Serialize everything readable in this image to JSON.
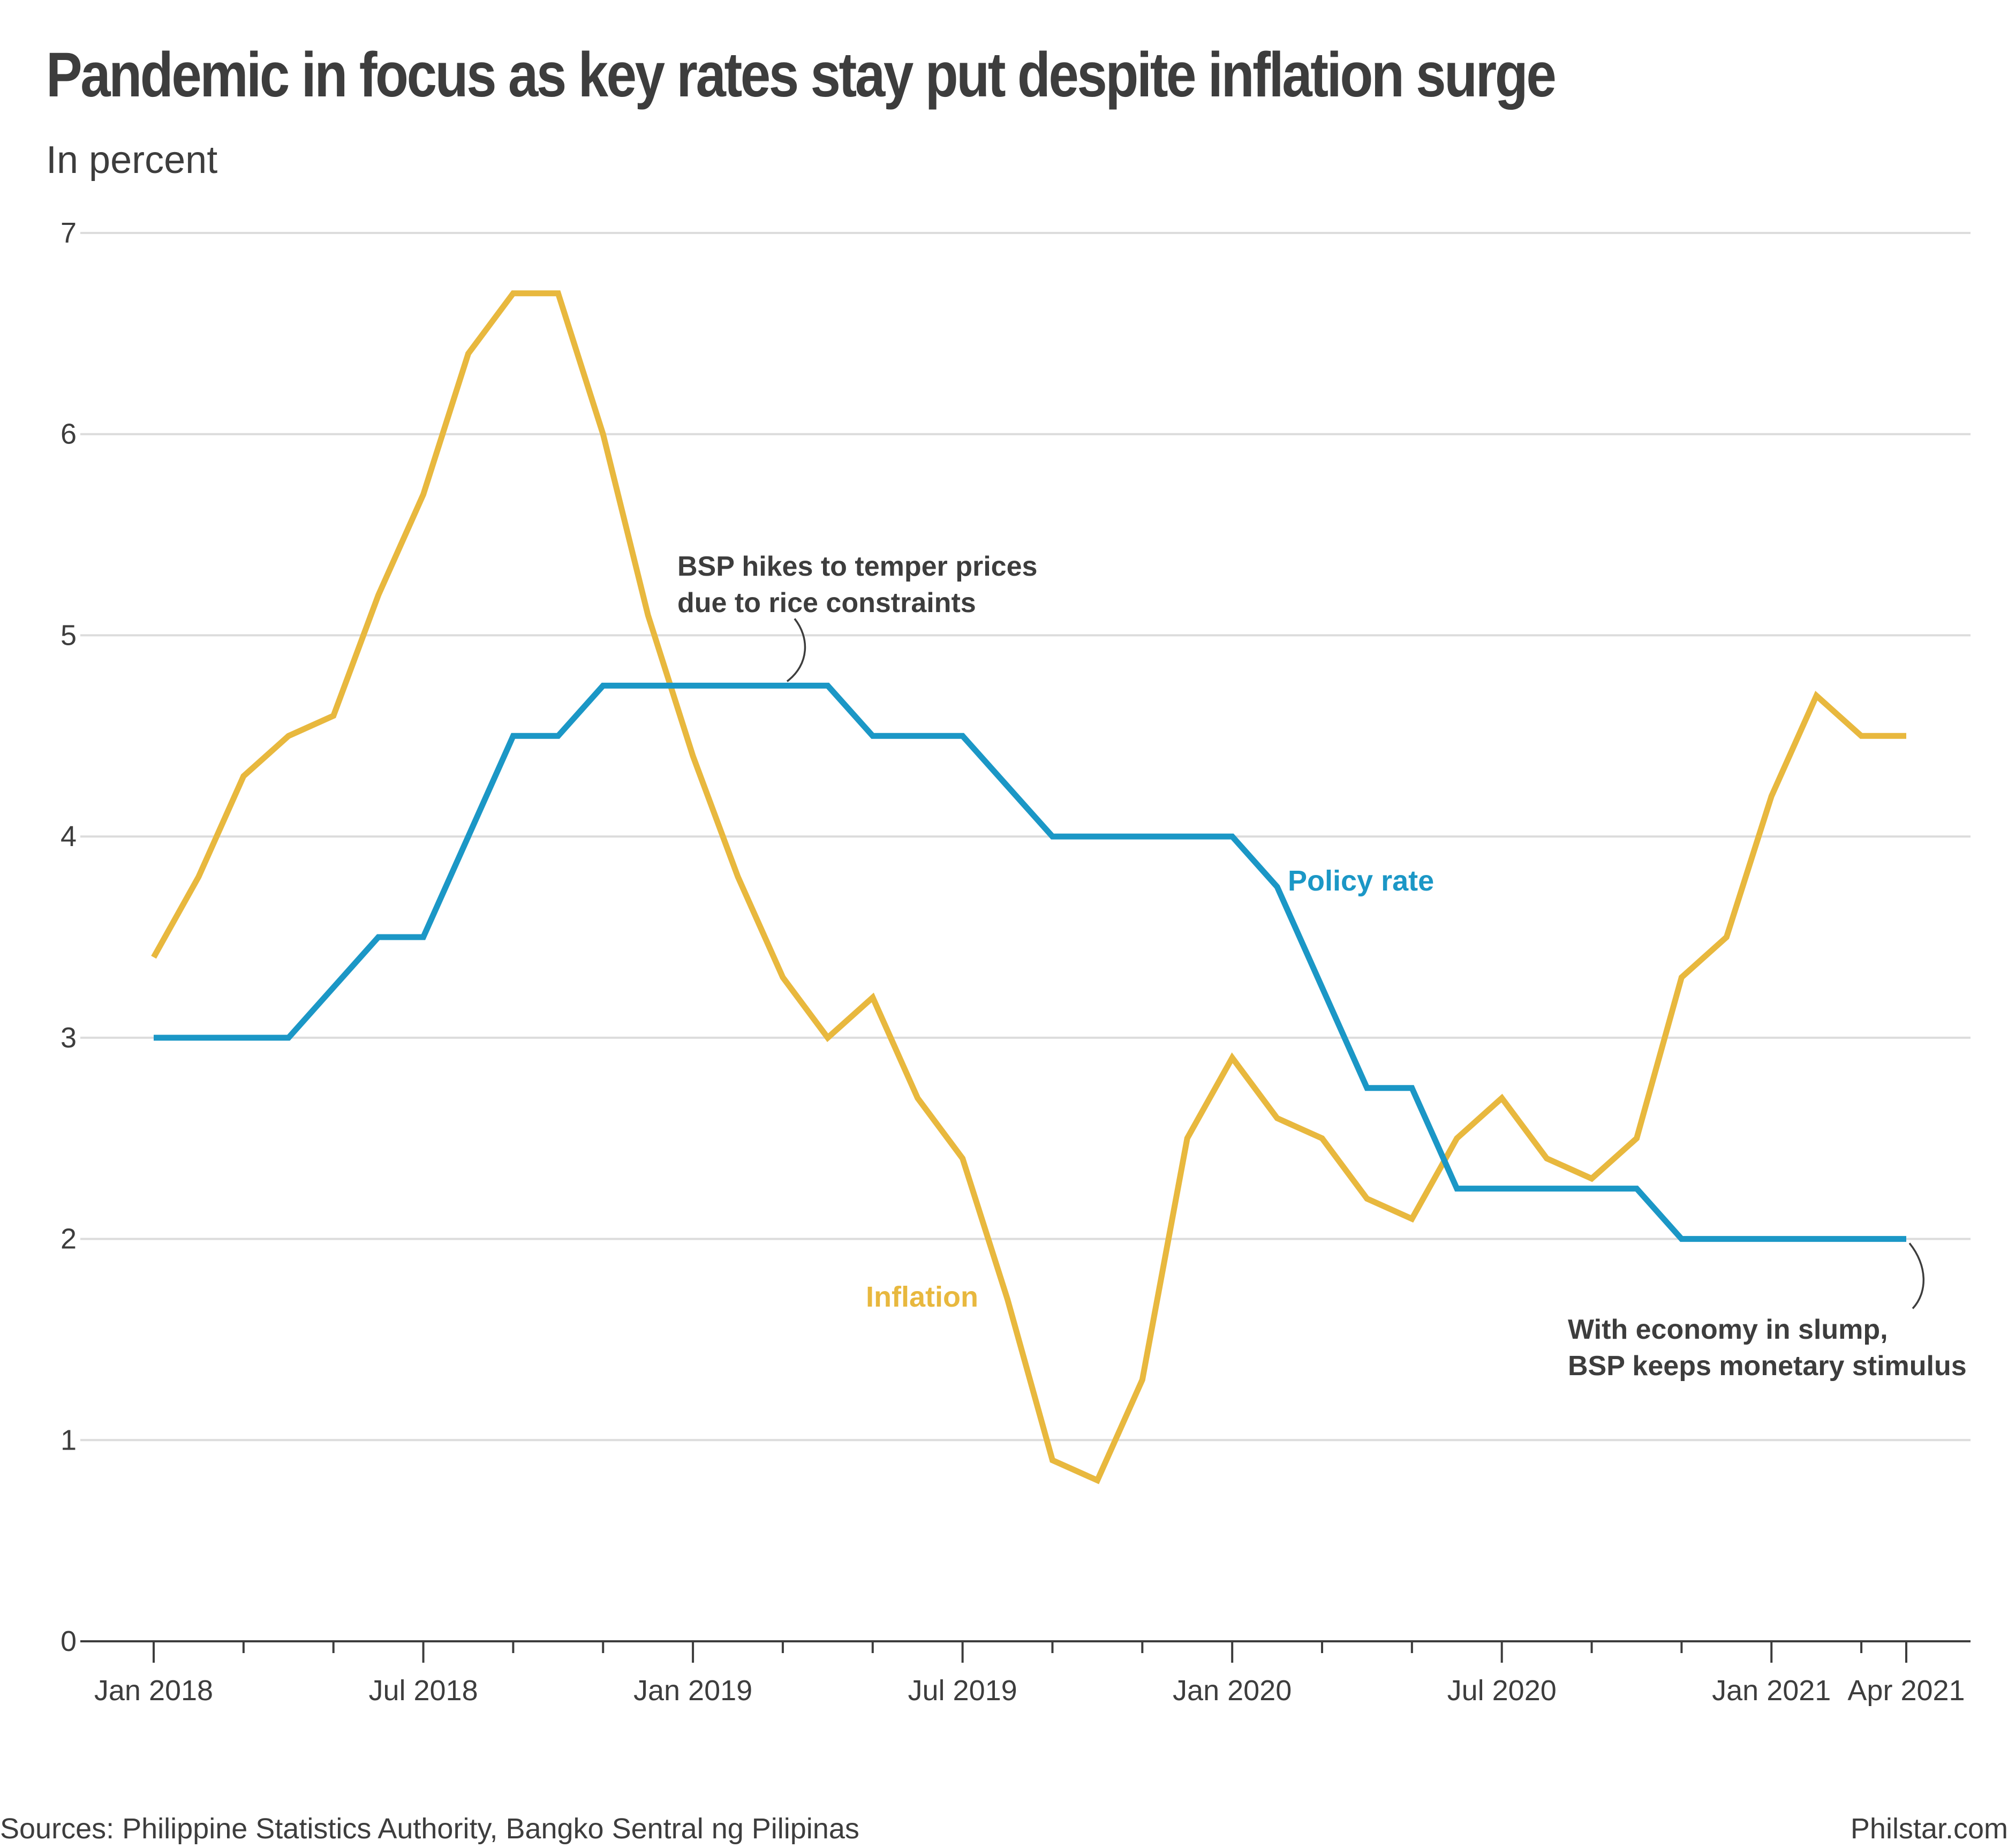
{
  "header": {
    "title": "Pandemic in focus as key rates stay put despite inflation surge",
    "subtitle": "In percent"
  },
  "footer": {
    "sources": "Sources: Philippine Statistics Authority, Bangko Sentral ng Pilipinas",
    "credit": "Philstar.com"
  },
  "chart_data": {
    "type": "line",
    "title": "Pandemic in focus as key rates stay put despite inflation surge",
    "ylabel": "In percent",
    "ylim": [
      0,
      7
    ],
    "yticks": [
      0,
      1,
      2,
      3,
      4,
      5,
      6,
      7
    ],
    "grid": true,
    "x": [
      "2018-01",
      "2018-02",
      "2018-03",
      "2018-04",
      "2018-05",
      "2018-06",
      "2018-07",
      "2018-08",
      "2018-09",
      "2018-10",
      "2018-11",
      "2018-12",
      "2019-01",
      "2019-02",
      "2019-03",
      "2019-04",
      "2019-05",
      "2019-06",
      "2019-07",
      "2019-08",
      "2019-09",
      "2019-10",
      "2019-11",
      "2019-12",
      "2020-01",
      "2020-02",
      "2020-03",
      "2020-04",
      "2020-05",
      "2020-06",
      "2020-07",
      "2020-08",
      "2020-09",
      "2020-10",
      "2020-11",
      "2020-12",
      "2021-01",
      "2021-02",
      "2021-03",
      "2021-04"
    ],
    "xtick_labels": [
      {
        "x": "2018-01",
        "label": "Jan 2018"
      },
      {
        "x": "2018-07",
        "label": "Jul 2018"
      },
      {
        "x": "2019-01",
        "label": "Jan 2019"
      },
      {
        "x": "2019-07",
        "label": "Jul 2019"
      },
      {
        "x": "2020-01",
        "label": "Jan 2020"
      },
      {
        "x": "2020-07",
        "label": "Jul 2020"
      },
      {
        "x": "2021-01",
        "label": "Jan 2021"
      },
      {
        "x": "2021-04",
        "label": "Apr 2021"
      }
    ],
    "series": [
      {
        "name": "Inflation",
        "color": "#e8b83e",
        "values": [
          3.4,
          3.8,
          4.3,
          4.5,
          4.6,
          5.2,
          5.7,
          6.4,
          6.7,
          6.7,
          6.0,
          5.1,
          4.4,
          3.8,
          3.3,
          3.0,
          3.2,
          2.7,
          2.4,
          1.7,
          0.9,
          0.8,
          1.3,
          2.5,
          2.9,
          2.6,
          2.5,
          2.2,
          2.1,
          2.5,
          2.7,
          2.4,
          2.3,
          2.5,
          3.3,
          3.5,
          4.2,
          4.7,
          4.5,
          4.5
        ]
      },
      {
        "name": "Policy rate",
        "color": "#1b97c6",
        "values": [
          3.0,
          3.0,
          3.0,
          3.0,
          3.25,
          3.5,
          3.5,
          4.0,
          4.5,
          4.5,
          4.75,
          4.75,
          4.75,
          4.75,
          4.75,
          4.75,
          4.5,
          4.5,
          4.5,
          4.25,
          4.0,
          4.0,
          4.0,
          4.0,
          4.0,
          3.75,
          3.25,
          2.75,
          2.75,
          2.25,
          2.25,
          2.25,
          2.25,
          2.25,
          2.0,
          2.0,
          2.0,
          2.0,
          2.0,
          2.0
        ]
      }
    ],
    "annotations": [
      {
        "lines": [
          "BSP hikes to temper prices",
          "due to rice constraints"
        ],
        "x": "2019-03",
        "y": 4.75
      },
      {
        "lines": [
          "With economy in slump,",
          "BSP keeps monetary stimulus"
        ],
        "x": "2021-04",
        "y": 2.0
      }
    ]
  }
}
